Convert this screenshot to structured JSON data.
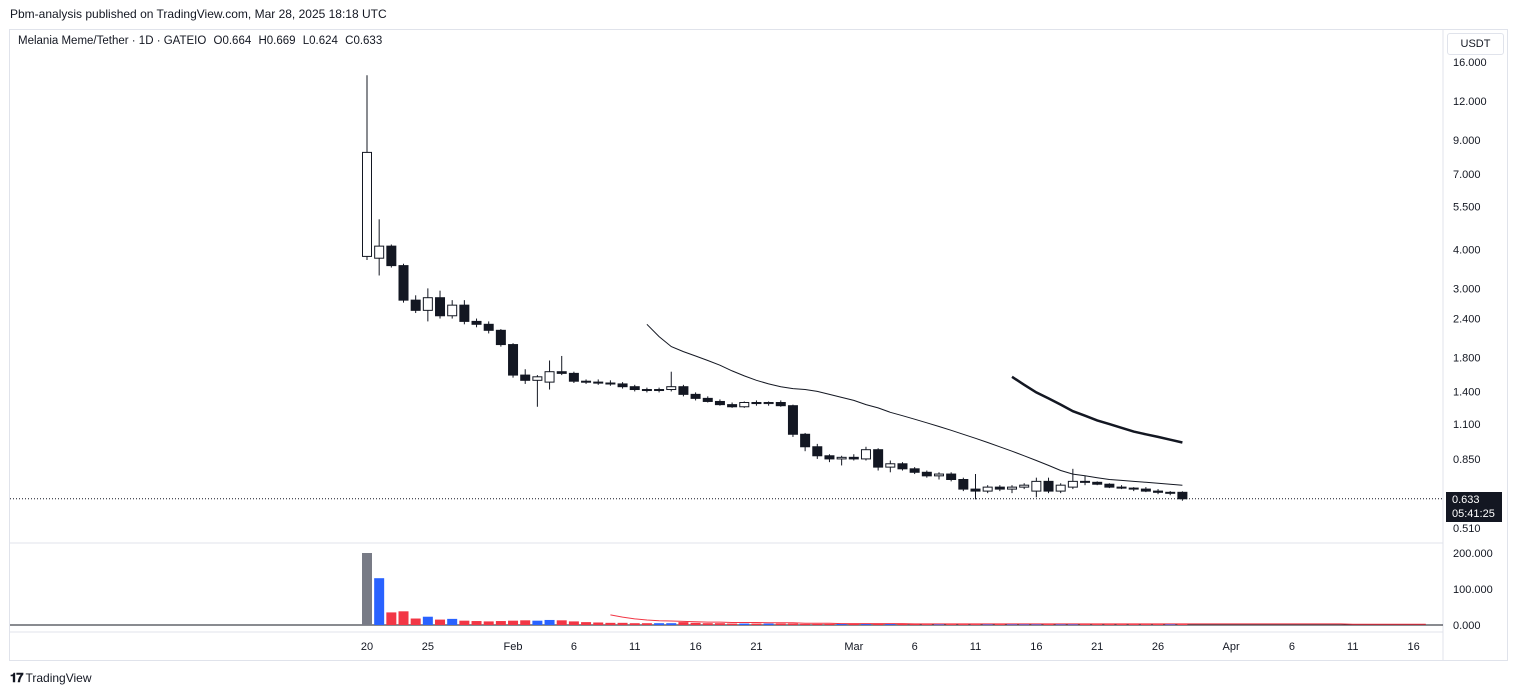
{
  "header": {
    "published": "Pbm-analysis published on TradingView.com, Mar 28, 2025 18:18 UTC"
  },
  "legend": {
    "symbol": "Melania Meme/Tether · 1D · GATEIO",
    "open": "O0.664",
    "high": "H0.669",
    "low": "L0.624",
    "close": "C0.633"
  },
  "currency_button": "USDT",
  "last_price": {
    "price": "0.633",
    "countdown": "05:41:25"
  },
  "footer": {
    "brand": "TradingView",
    "logo": "𝟏𝟕"
  },
  "colors": {
    "up_candle_fill": "#ffffff",
    "down_candle_fill": "#131722",
    "volume_up": "#2962ff",
    "volume_down": "#f23645",
    "volume_first": "#787b86"
  },
  "chart_data": {
    "type": "candlestick",
    "price_scale": "log",
    "price_axis_ticks": [
      "16.000",
      "12.000",
      "9.000",
      "7.000",
      "5.500",
      "4.000",
      "3.000",
      "2.400",
      "1.800",
      "1.400",
      "1.100",
      "0.850",
      "0.510"
    ],
    "volume_axis_ticks": [
      "200.000",
      "100.000",
      "0.000"
    ],
    "time_axis_ticks": [
      "20",
      "25",
      "Feb",
      "6",
      "11",
      "16",
      "21",
      "Mar",
      "6",
      "11",
      "16",
      "21",
      "26",
      "Apr",
      "6",
      "11",
      "16"
    ],
    "candles": [
      {
        "date": "2025-01-20",
        "o": 3.8,
        "h": 14.5,
        "l": 3.7,
        "c": 8.2
      },
      {
        "date": "2025-01-21",
        "o": 3.75,
        "h": 5.0,
        "l": 3.3,
        "c": 4.1
      },
      {
        "date": "2025-01-22",
        "o": 4.1,
        "h": 4.15,
        "l": 3.5,
        "c": 3.55
      },
      {
        "date": "2025-01-23",
        "o": 3.55,
        "h": 3.6,
        "l": 2.7,
        "c": 2.75
      },
      {
        "date": "2025-01-24",
        "o": 2.75,
        "h": 2.85,
        "l": 2.5,
        "c": 2.55
      },
      {
        "date": "2025-01-25",
        "o": 2.55,
        "h": 3.0,
        "l": 2.35,
        "c": 2.8
      },
      {
        "date": "2025-01-26",
        "o": 2.8,
        "h": 2.95,
        "l": 2.4,
        "c": 2.45
      },
      {
        "date": "2025-01-27",
        "o": 2.45,
        "h": 2.75,
        "l": 2.4,
        "c": 2.65
      },
      {
        "date": "2025-01-28",
        "o": 2.65,
        "h": 2.75,
        "l": 2.3,
        "c": 2.35
      },
      {
        "date": "2025-01-29",
        "o": 2.35,
        "h": 2.4,
        "l": 2.25,
        "c": 2.3
      },
      {
        "date": "2025-01-30",
        "o": 2.3,
        "h": 2.35,
        "l": 2.15,
        "c": 2.2
      },
      {
        "date": "2025-01-31",
        "o": 2.2,
        "h": 2.22,
        "l": 1.95,
        "c": 1.98
      },
      {
        "date": "2025-02-01",
        "o": 1.98,
        "h": 2.0,
        "l": 1.55,
        "c": 1.58
      },
      {
        "date": "2025-02-02",
        "o": 1.58,
        "h": 1.65,
        "l": 1.48,
        "c": 1.52
      },
      {
        "date": "2025-02-03",
        "o": 1.52,
        "h": 1.58,
        "l": 1.25,
        "c": 1.56
      },
      {
        "date": "2025-02-04",
        "o": 1.5,
        "h": 1.76,
        "l": 1.42,
        "c": 1.62
      },
      {
        "date": "2025-02-05",
        "o": 1.62,
        "h": 1.82,
        "l": 1.58,
        "c": 1.6
      },
      {
        "date": "2025-02-06",
        "o": 1.6,
        "h": 1.62,
        "l": 1.49,
        "c": 1.51
      },
      {
        "date": "2025-02-07",
        "o": 1.51,
        "h": 1.53,
        "l": 1.48,
        "c": 1.5
      },
      {
        "date": "2025-02-08",
        "o": 1.5,
        "h": 1.53,
        "l": 1.47,
        "c": 1.49
      },
      {
        "date": "2025-02-09",
        "o": 1.49,
        "h": 1.52,
        "l": 1.46,
        "c": 1.48
      },
      {
        "date": "2025-02-10",
        "o": 1.48,
        "h": 1.5,
        "l": 1.43,
        "c": 1.45
      },
      {
        "date": "2025-02-11",
        "o": 1.45,
        "h": 1.47,
        "l": 1.4,
        "c": 1.42
      },
      {
        "date": "2025-02-12",
        "o": 1.42,
        "h": 1.44,
        "l": 1.39,
        "c": 1.41
      },
      {
        "date": "2025-02-13",
        "o": 1.41,
        "h": 1.44,
        "l": 1.39,
        "c": 1.42
      },
      {
        "date": "2025-02-14",
        "o": 1.42,
        "h": 1.62,
        "l": 1.4,
        "c": 1.45
      },
      {
        "date": "2025-02-15",
        "o": 1.45,
        "h": 1.47,
        "l": 1.35,
        "c": 1.37
      },
      {
        "date": "2025-02-16",
        "o": 1.37,
        "h": 1.39,
        "l": 1.31,
        "c": 1.33
      },
      {
        "date": "2025-02-17",
        "o": 1.33,
        "h": 1.35,
        "l": 1.29,
        "c": 1.3
      },
      {
        "date": "2025-02-18",
        "o": 1.3,
        "h": 1.32,
        "l": 1.26,
        "c": 1.27
      },
      {
        "date": "2025-02-19",
        "o": 1.27,
        "h": 1.29,
        "l": 1.24,
        "c": 1.25
      },
      {
        "date": "2025-02-20",
        "o": 1.25,
        "h": 1.3,
        "l": 1.24,
        "c": 1.29
      },
      {
        "date": "2025-02-21",
        "o": 1.29,
        "h": 1.31,
        "l": 1.26,
        "c": 1.28
      },
      {
        "date": "2025-02-22",
        "o": 1.28,
        "h": 1.3,
        "l": 1.26,
        "c": 1.29
      },
      {
        "date": "2025-02-23",
        "o": 1.29,
        "h": 1.31,
        "l": 1.25,
        "c": 1.26
      },
      {
        "date": "2025-02-24",
        "o": 1.26,
        "h": 1.27,
        "l": 1.0,
        "c": 1.02
      },
      {
        "date": "2025-02-25",
        "o": 1.02,
        "h": 1.03,
        "l": 0.9,
        "c": 0.93
      },
      {
        "date": "2025-02-26",
        "o": 0.93,
        "h": 0.95,
        "l": 0.85,
        "c": 0.87
      },
      {
        "date": "2025-02-27",
        "o": 0.87,
        "h": 0.88,
        "l": 0.83,
        "c": 0.85
      },
      {
        "date": "2025-02-28",
        "o": 0.85,
        "h": 0.87,
        "l": 0.81,
        "c": 0.86
      },
      {
        "date": "2025-03-01",
        "o": 0.86,
        "h": 0.88,
        "l": 0.84,
        "c": 0.85
      },
      {
        "date": "2025-03-02",
        "o": 0.85,
        "h": 0.93,
        "l": 0.84,
        "c": 0.91
      },
      {
        "date": "2025-03-03",
        "o": 0.91,
        "h": 0.92,
        "l": 0.78,
        "c": 0.8
      },
      {
        "date": "2025-03-04",
        "o": 0.8,
        "h": 0.84,
        "l": 0.77,
        "c": 0.82
      },
      {
        "date": "2025-03-05",
        "o": 0.82,
        "h": 0.83,
        "l": 0.78,
        "c": 0.79
      },
      {
        "date": "2025-03-06",
        "o": 0.79,
        "h": 0.8,
        "l": 0.76,
        "c": 0.77
      },
      {
        "date": "2025-03-07",
        "o": 0.77,
        "h": 0.78,
        "l": 0.74,
        "c": 0.75
      },
      {
        "date": "2025-03-08",
        "o": 0.75,
        "h": 0.77,
        "l": 0.73,
        "c": 0.76
      },
      {
        "date": "2025-03-09",
        "o": 0.76,
        "h": 0.77,
        "l": 0.72,
        "c": 0.73
      },
      {
        "date": "2025-03-10",
        "o": 0.73,
        "h": 0.74,
        "l": 0.67,
        "c": 0.68
      },
      {
        "date": "2025-03-11",
        "o": 0.68,
        "h": 0.76,
        "l": 0.63,
        "c": 0.67
      },
      {
        "date": "2025-03-12",
        "o": 0.67,
        "h": 0.7,
        "l": 0.66,
        "c": 0.69
      },
      {
        "date": "2025-03-13",
        "o": 0.69,
        "h": 0.7,
        "l": 0.67,
        "c": 0.68
      },
      {
        "date": "2025-03-14",
        "o": 0.68,
        "h": 0.7,
        "l": 0.66,
        "c": 0.69
      },
      {
        "date": "2025-03-15",
        "o": 0.69,
        "h": 0.71,
        "l": 0.68,
        "c": 0.7
      },
      {
        "date": "2025-03-16",
        "o": 0.67,
        "h": 0.74,
        "l": 0.64,
        "c": 0.72
      },
      {
        "date": "2025-03-17",
        "o": 0.72,
        "h": 0.74,
        "l": 0.66,
        "c": 0.67
      },
      {
        "date": "2025-03-18",
        "o": 0.67,
        "h": 0.71,
        "l": 0.66,
        "c": 0.7
      },
      {
        "date": "2025-03-19",
        "o": 0.69,
        "h": 0.79,
        "l": 0.68,
        "c": 0.72
      },
      {
        "date": "2025-03-20",
        "o": 0.72,
        "h": 0.75,
        "l": 0.7,
        "c": 0.715
      },
      {
        "date": "2025-03-21",
        "o": 0.715,
        "h": 0.72,
        "l": 0.7,
        "c": 0.705
      },
      {
        "date": "2025-03-22",
        "o": 0.705,
        "h": 0.71,
        "l": 0.685,
        "c": 0.69
      },
      {
        "date": "2025-03-23",
        "o": 0.69,
        "h": 0.7,
        "l": 0.68,
        "c": 0.685
      },
      {
        "date": "2025-03-24",
        "o": 0.685,
        "h": 0.69,
        "l": 0.67,
        "c": 0.68
      },
      {
        "date": "2025-03-25",
        "o": 0.68,
        "h": 0.69,
        "l": 0.665,
        "c": 0.67
      },
      {
        "date": "2025-03-26",
        "o": 0.67,
        "h": 0.68,
        "l": 0.655,
        "c": 0.664
      },
      {
        "date": "2025-03-27",
        "o": 0.664,
        "h": 0.67,
        "l": 0.65,
        "c": 0.664
      },
      {
        "date": "2025-03-28",
        "o": 0.664,
        "h": 0.669,
        "l": 0.624,
        "c": 0.633
      }
    ],
    "moving_averages": [
      {
        "values": [
          2.3,
          2.1,
          1.95,
          1.88,
          1.82,
          1.76,
          1.7,
          1.63,
          1.57,
          1.52,
          1.48,
          1.45,
          1.43,
          1.42,
          1.4,
          1.37,
          1.34,
          1.31,
          1.27,
          1.24,
          1.2,
          1.17,
          1.14,
          1.11,
          1.08,
          1.05,
          1.02,
          0.99,
          0.96,
          0.93,
          0.9,
          0.87,
          0.84,
          0.81,
          0.78,
          0.76,
          0.75,
          0.74,
          0.73,
          0.725,
          0.72,
          0.715,
          0.71,
          0.705,
          0.7
        ]
      },
      {
        "values": [
          1.56,
          1.47,
          1.39,
          1.33,
          1.27,
          1.21,
          1.17,
          1.13,
          1.1,
          1.07,
          1.04,
          1.02,
          1.0,
          0.98,
          0.96
        ]
      }
    ],
    "volume": [
      200,
      130,
      35,
      38,
      18,
      23,
      15,
      17,
      12,
      11,
      10,
      11,
      12,
      13,
      12,
      14,
      13,
      10,
      8,
      7,
      6,
      6,
      5,
      5,
      5,
      5,
      8,
      6,
      5,
      5,
      4,
      4,
      4,
      4,
      4,
      4,
      3,
      3,
      3,
      3,
      3,
      3,
      3,
      3,
      3,
      3,
      2,
      2,
      2,
      2,
      2,
      2,
      2,
      2,
      2,
      2,
      2,
      2,
      2,
      2,
      2,
      2,
      2,
      2,
      2,
      2,
      2,
      2
    ],
    "volume_ma": [
      28,
      22,
      17,
      14,
      12,
      11,
      10,
      9,
      8,
      8,
      7,
      7,
      7,
      6,
      6,
      6,
      5,
      5,
      5,
      4,
      4,
      4,
      4,
      4,
      4,
      3,
      3,
      3,
      3,
      3,
      3,
      3,
      3,
      3,
      3,
      3,
      3,
      3,
      3,
      3,
      3,
      3,
      3,
      3,
      3,
      3,
      3,
      3,
      3,
      3,
      3,
      3,
      3,
      3,
      3,
      3,
      3,
      3,
      3,
      3,
      3,
      2,
      2,
      2,
      2,
      2,
      2,
      2
    ]
  }
}
